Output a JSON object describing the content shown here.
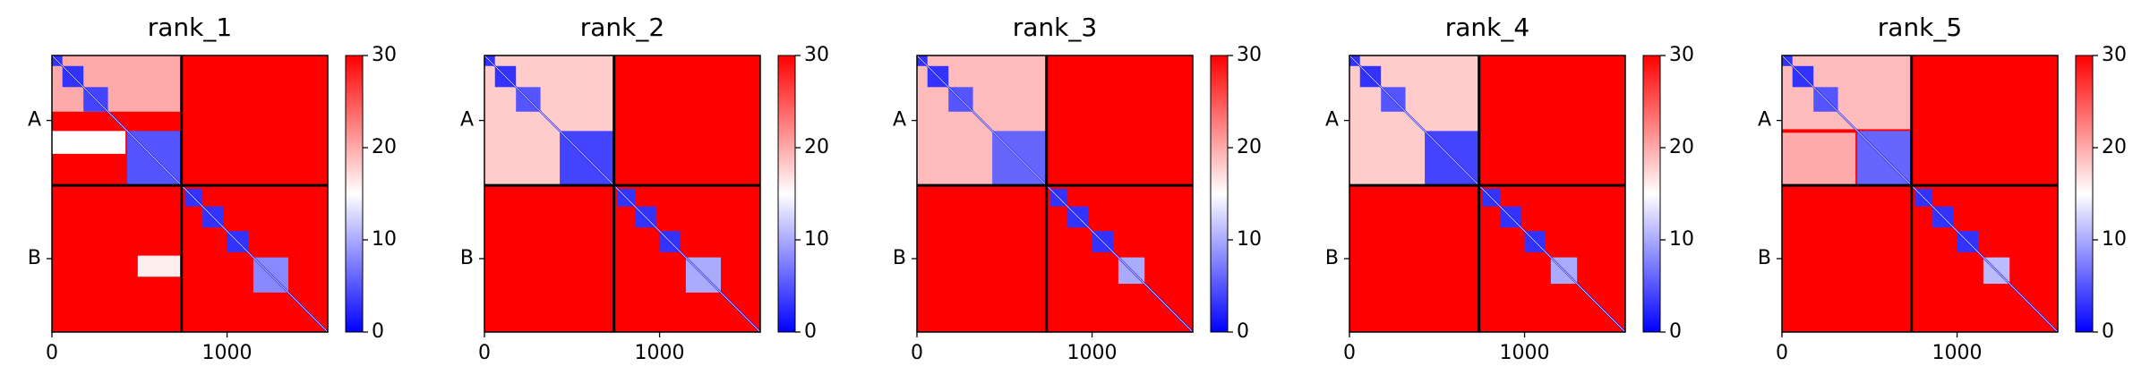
{
  "chart_data": [
    {
      "type": "heatmap",
      "title": "rank_1",
      "xlim": [
        0,
        1575
      ],
      "ylim": [
        0,
        1575
      ],
      "xticks": [
        0,
        1000
      ],
      "yticks": [
        {
          "value": 370,
          "label": "A"
        },
        {
          "value": 1157,
          "label": "B"
        }
      ],
      "boundaries": [
        740
      ],
      "background": 30,
      "diagonal": 0,
      "clim": [
        0,
        30
      ],
      "cticks": [
        0,
        10,
        20,
        30
      ],
      "blocks": [
        {
          "x": [
            0,
            740
          ],
          "y": [
            0,
            320
          ],
          "value": 20
        },
        {
          "x": [
            0,
            420
          ],
          "y": [
            430,
            560
          ],
          "value": 15
        },
        {
          "x": [
            490,
            740
          ],
          "y": [
            1140,
            1260
          ],
          "value": 16
        },
        {
          "x": [
            0,
            60
          ],
          "y": [
            0,
            60
          ],
          "value": 3
        },
        {
          "x": [
            60,
            180
          ],
          "y": [
            60,
            180
          ],
          "value": 3
        },
        {
          "x": [
            180,
            320
          ],
          "y": [
            180,
            320
          ],
          "value": 4
        },
        {
          "x": [
            430,
            740
          ],
          "y": [
            430,
            740
          ],
          "value": 5
        },
        {
          "x": [
            760,
            860
          ],
          "y": [
            760,
            860
          ],
          "value": 3
        },
        {
          "x": [
            860,
            980
          ],
          "y": [
            860,
            980
          ],
          "value": 3
        },
        {
          "x": [
            1000,
            1120
          ],
          "y": [
            1000,
            1120
          ],
          "value": 3
        },
        {
          "x": [
            1150,
            1350
          ],
          "y": [
            1150,
            1350
          ],
          "value": 8
        }
      ]
    },
    {
      "type": "heatmap",
      "title": "rank_2",
      "xlim": [
        0,
        1575
      ],
      "ylim": [
        0,
        1575
      ],
      "xticks": [
        0,
        1000
      ],
      "yticks": [
        {
          "value": 370,
          "label": "A"
        },
        {
          "value": 1157,
          "label": "B"
        }
      ],
      "boundaries": [
        740
      ],
      "background": 30,
      "diagonal": 0,
      "clim": [
        0,
        30
      ],
      "cticks": [
        0,
        10,
        20,
        30
      ],
      "blocks": [
        {
          "x": [
            0,
            740
          ],
          "y": [
            0,
            740
          ],
          "value": 18
        },
        {
          "x": [
            0,
            60
          ],
          "y": [
            0,
            60
          ],
          "value": 3
        },
        {
          "x": [
            60,
            180
          ],
          "y": [
            60,
            180
          ],
          "value": 3
        },
        {
          "x": [
            180,
            320
          ],
          "y": [
            180,
            320
          ],
          "value": 5
        },
        {
          "x": [
            430,
            740
          ],
          "y": [
            430,
            740
          ],
          "value": 4
        },
        {
          "x": [
            760,
            860
          ],
          "y": [
            760,
            860
          ],
          "value": 3
        },
        {
          "x": [
            860,
            980
          ],
          "y": [
            860,
            980
          ],
          "value": 3
        },
        {
          "x": [
            1000,
            1120
          ],
          "y": [
            1000,
            1120
          ],
          "value": 3
        },
        {
          "x": [
            1150,
            1350
          ],
          "y": [
            1150,
            1350
          ],
          "value": 10
        }
      ]
    },
    {
      "type": "heatmap",
      "title": "rank_3",
      "xlim": [
        0,
        1575
      ],
      "ylim": [
        0,
        1575
      ],
      "xticks": [
        0,
        1000
      ],
      "yticks": [
        {
          "value": 370,
          "label": "A"
        },
        {
          "value": 1157,
          "label": "B"
        }
      ],
      "boundaries": [
        740
      ],
      "background": 30,
      "diagonal": 0,
      "clim": [
        0,
        30
      ],
      "cticks": [
        0,
        10,
        20,
        30
      ],
      "blocks": [
        {
          "x": [
            0,
            740
          ],
          "y": [
            0,
            740
          ],
          "value": 19
        },
        {
          "x": [
            0,
            60
          ],
          "y": [
            0,
            60
          ],
          "value": 3
        },
        {
          "x": [
            60,
            180
          ],
          "y": [
            60,
            180
          ],
          "value": 3
        },
        {
          "x": [
            180,
            320
          ],
          "y": [
            180,
            320
          ],
          "value": 5
        },
        {
          "x": [
            430,
            740
          ],
          "y": [
            430,
            740
          ],
          "value": 6
        },
        {
          "x": [
            760,
            860
          ],
          "y": [
            760,
            860
          ],
          "value": 3
        },
        {
          "x": [
            860,
            980
          ],
          "y": [
            860,
            980
          ],
          "value": 3
        },
        {
          "x": [
            1000,
            1120
          ],
          "y": [
            1000,
            1120
          ],
          "value": 3
        },
        {
          "x": [
            1150,
            1300
          ],
          "y": [
            1150,
            1300
          ],
          "value": 10
        }
      ]
    },
    {
      "type": "heatmap",
      "title": "rank_4",
      "xlim": [
        0,
        1575
      ],
      "ylim": [
        0,
        1575
      ],
      "xticks": [
        0,
        1000
      ],
      "yticks": [
        {
          "value": 370,
          "label": "A"
        },
        {
          "value": 1157,
          "label": "B"
        }
      ],
      "boundaries": [
        740
      ],
      "background": 30,
      "diagonal": 0,
      "clim": [
        0,
        30
      ],
      "cticks": [
        0,
        10,
        20,
        30
      ],
      "blocks": [
        {
          "x": [
            0,
            740
          ],
          "y": [
            0,
            740
          ],
          "value": 18
        },
        {
          "x": [
            0,
            60
          ],
          "y": [
            0,
            60
          ],
          "value": 3
        },
        {
          "x": [
            60,
            180
          ],
          "y": [
            60,
            180
          ],
          "value": 3
        },
        {
          "x": [
            180,
            320
          ],
          "y": [
            180,
            320
          ],
          "value": 5
        },
        {
          "x": [
            430,
            740
          ],
          "y": [
            430,
            740
          ],
          "value": 4
        },
        {
          "x": [
            760,
            860
          ],
          "y": [
            760,
            860
          ],
          "value": 3
        },
        {
          "x": [
            860,
            980
          ],
          "y": [
            860,
            980
          ],
          "value": 3
        },
        {
          "x": [
            1000,
            1120
          ],
          "y": [
            1000,
            1120
          ],
          "value": 3
        },
        {
          "x": [
            1150,
            1300
          ],
          "y": [
            1150,
            1300
          ],
          "value": 10
        }
      ]
    },
    {
      "type": "heatmap",
      "title": "rank_5",
      "xlim": [
        0,
        1575
      ],
      "ylim": [
        0,
        1575
      ],
      "xticks": [
        0,
        1000
      ],
      "yticks": [
        {
          "value": 370,
          "label": "A"
        },
        {
          "value": 1157,
          "label": "B"
        }
      ],
      "boundaries": [
        740
      ],
      "background": 30,
      "diagonal": 0,
      "clim": [
        0,
        30
      ],
      "cticks": [
        0,
        10,
        20,
        30
      ],
      "blocks": [
        {
          "x": [
            0,
            740
          ],
          "y": [
            0,
            420
          ],
          "value": 19
        },
        {
          "x": [
            0,
            420
          ],
          "y": [
            440,
            740
          ],
          "value": 20
        },
        {
          "x": [
            0,
            60
          ],
          "y": [
            0,
            60
          ],
          "value": 3
        },
        {
          "x": [
            60,
            180
          ],
          "y": [
            60,
            180
          ],
          "value": 3
        },
        {
          "x": [
            180,
            320
          ],
          "y": [
            180,
            320
          ],
          "value": 5
        },
        {
          "x": [
            430,
            740
          ],
          "y": [
            430,
            740
          ],
          "value": 6
        },
        {
          "x": [
            760,
            860
          ],
          "y": [
            760,
            860
          ],
          "value": 3
        },
        {
          "x": [
            860,
            980
          ],
          "y": [
            860,
            980
          ],
          "value": 3
        },
        {
          "x": [
            1000,
            1120
          ],
          "y": [
            1000,
            1120
          ],
          "value": 3
        },
        {
          "x": [
            1150,
            1300
          ],
          "y": [
            1150,
            1300
          ],
          "value": 11
        }
      ]
    }
  ]
}
